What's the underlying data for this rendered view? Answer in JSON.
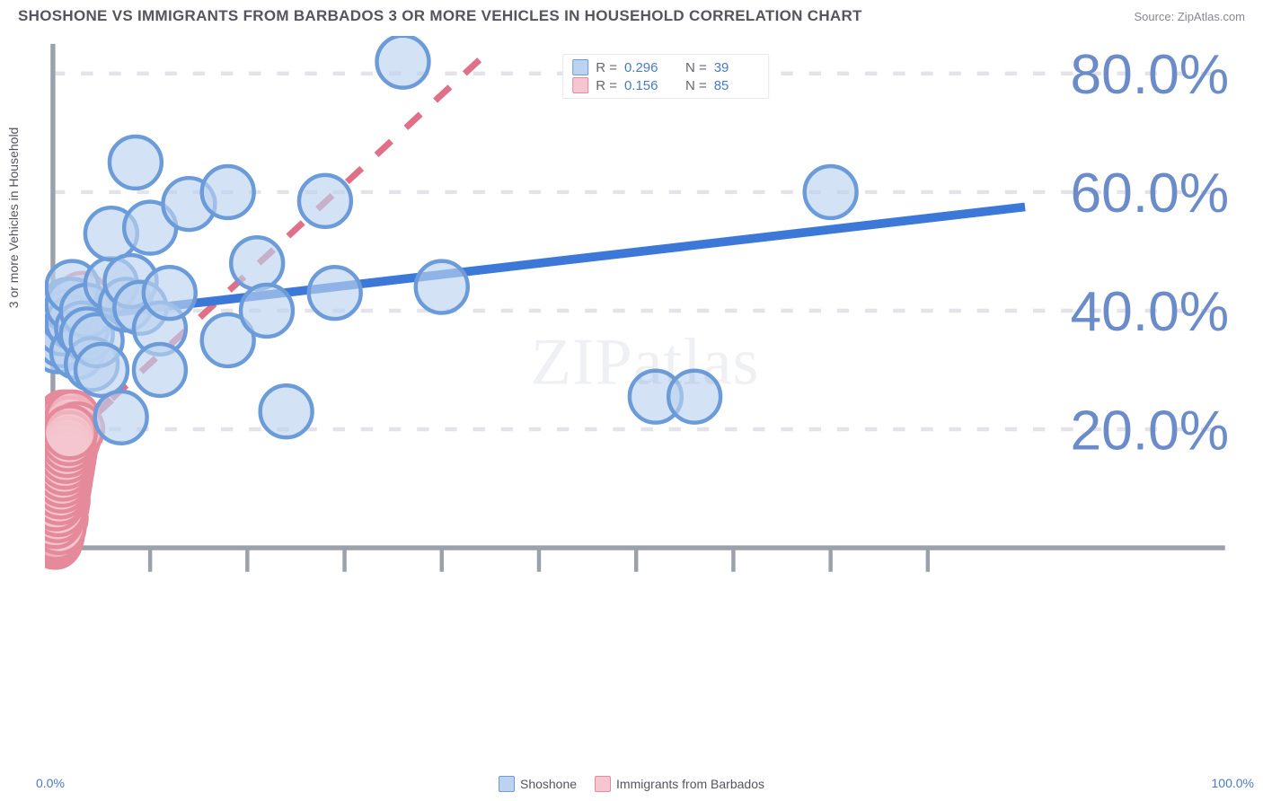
{
  "title": "SHOSHONE VS IMMIGRANTS FROM BARBADOS 3 OR MORE VEHICLES IN HOUSEHOLD CORRELATION CHART",
  "source": "Source: ZipAtlas.com",
  "watermark_a": "ZIP",
  "watermark_b": "atlas",
  "y_axis_label": "3 or more Vehicles in Household",
  "x_origin": "0.0%",
  "x_max": "100.0%",
  "chart": {
    "type": "scatter",
    "xlim": [
      0,
      100
    ],
    "ylim": [
      0,
      85
    ],
    "y_ticks": [
      20,
      40,
      60,
      80
    ],
    "y_tick_labels": [
      "20.0%",
      "40.0%",
      "60.0%",
      "80.0%"
    ],
    "x_ticks": [
      10,
      20,
      30,
      40,
      50,
      60,
      70,
      80,
      90
    ],
    "background_color": "#ffffff",
    "grid_color": "#e3e3e9",
    "axis_color": "#9aa1aa",
    "tick_label_color": "#6b8cc9",
    "series": [
      {
        "name": "Shoshone",
        "marker_fill": "#bcd2ef",
        "marker_stroke": "#6b9bd8",
        "marker_r": 6.5,
        "trend_color": "#3c78d8",
        "trend_width": 2.2,
        "trend_dash": "none",
        "trend": {
          "x1": 0,
          "y1": 38.5,
          "x2": 100,
          "y2": 57.5
        },
        "R_label": "R =",
        "R": "0.296",
        "N_label": "N =",
        "N": "39",
        "points": [
          [
            0.5,
            34
          ],
          [
            1,
            35
          ],
          [
            1,
            37
          ],
          [
            1.5,
            39
          ],
          [
            1.5,
            41
          ],
          [
            2,
            38
          ],
          [
            2,
            41
          ],
          [
            2,
            44
          ],
          [
            2.5,
            33
          ],
          [
            3,
            37
          ],
          [
            3.5,
            40
          ],
          [
            3.5,
            36
          ],
          [
            4,
            31
          ],
          [
            4.5,
            35
          ],
          [
            5,
            30
          ],
          [
            6,
            44.5
          ],
          [
            6,
            53
          ],
          [
            7,
            22
          ],
          [
            7.5,
            41
          ],
          [
            8,
            45
          ],
          [
            8.5,
            65
          ],
          [
            9,
            40.5
          ],
          [
            10,
            54
          ],
          [
            11,
            37
          ],
          [
            11,
            30
          ],
          [
            12,
            43
          ],
          [
            14,
            58
          ],
          [
            18,
            35
          ],
          [
            18,
            60
          ],
          [
            21,
            48
          ],
          [
            22,
            40
          ],
          [
            24,
            23
          ],
          [
            28,
            58.5
          ],
          [
            29,
            43
          ],
          [
            36,
            82
          ],
          [
            40,
            44
          ],
          [
            62,
            25.5
          ],
          [
            66,
            25.5
          ],
          [
            80,
            60
          ]
        ]
      },
      {
        "name": "Immigrants from Barbados",
        "marker_fill": "#f5c6cf",
        "marker_stroke": "#e48a9a",
        "marker_r": 6.5,
        "trend_color": "#e07088",
        "trend_width": 1.6,
        "trend_dash": "5,5",
        "trend": {
          "x1": 0,
          "y1": 16,
          "x2": 45,
          "y2": 84
        },
        "solid_segment": {
          "x1": 0,
          "y1": 16,
          "x2": 6,
          "y2": 25
        },
        "R_label": "R =",
        "R": "0.156",
        "N_label": "N =",
        "N": "85",
        "points": [
          [
            0.1,
            2
          ],
          [
            0.1,
            3
          ],
          [
            0.1,
            4
          ],
          [
            0.1,
            5
          ],
          [
            0.2,
            2
          ],
          [
            0.2,
            4
          ],
          [
            0.2,
            6
          ],
          [
            0.2,
            7
          ],
          [
            0.3,
            3
          ],
          [
            0.3,
            5
          ],
          [
            0.3,
            8
          ],
          [
            0.3,
            10
          ],
          [
            0.4,
            4
          ],
          [
            0.4,
            6
          ],
          [
            0.4,
            9
          ],
          [
            0.4,
            11
          ],
          [
            0.5,
            5
          ],
          [
            0.5,
            7
          ],
          [
            0.5,
            10
          ],
          [
            0.5,
            13
          ],
          [
            0.6,
            4
          ],
          [
            0.6,
            8
          ],
          [
            0.6,
            12
          ],
          [
            0.6,
            15
          ],
          [
            0.7,
            6
          ],
          [
            0.7,
            9
          ],
          [
            0.7,
            14
          ],
          [
            0.7,
            17
          ],
          [
            0.8,
            5
          ],
          [
            0.8,
            11
          ],
          [
            0.8,
            16
          ],
          [
            0.8,
            19
          ],
          [
            0.9,
            7
          ],
          [
            0.9,
            13
          ],
          [
            0.9,
            18
          ],
          [
            0.9,
            20
          ],
          [
            1.0,
            8
          ],
          [
            1.0,
            12
          ],
          [
            1.0,
            21
          ],
          [
            1.1,
            10
          ],
          [
            1.1,
            15
          ],
          [
            1.1,
            22
          ],
          [
            1.2,
            11
          ],
          [
            1.2,
            17
          ],
          [
            1.2,
            20
          ],
          [
            1.3,
            12
          ],
          [
            1.3,
            19
          ],
          [
            1.4,
            13
          ],
          [
            1.4,
            21
          ],
          [
            1.5,
            14
          ],
          [
            1.5,
            22
          ],
          [
            1.6,
            15
          ],
          [
            1.6,
            20
          ],
          [
            1.7,
            16
          ],
          [
            1.8,
            17
          ],
          [
            1.8,
            21
          ],
          [
            2.0,
            18
          ],
          [
            2.0,
            22
          ],
          [
            2.2,
            19
          ],
          [
            2.5,
            20
          ],
          [
            2.5,
            38
          ],
          [
            3,
            42
          ],
          [
            0.2,
            1
          ],
          [
            0.3,
            1.5
          ],
          [
            0.15,
            2.5
          ],
          [
            0.4,
            2
          ],
          [
            0.5,
            3
          ],
          [
            0.3,
            2.5
          ],
          [
            0.6,
            3.5
          ],
          [
            0.25,
            4.5
          ],
          [
            0.45,
            5.5
          ],
          [
            0.55,
            6.5
          ],
          [
            0.35,
            7.5
          ],
          [
            0.65,
            8.5
          ],
          [
            0.75,
            9.5
          ],
          [
            0.85,
            10.5
          ],
          [
            0.95,
            11.5
          ],
          [
            1.05,
            12.5
          ],
          [
            1.15,
            13.5
          ],
          [
            1.25,
            14.5
          ],
          [
            1.35,
            15.5
          ],
          [
            1.45,
            16.5
          ],
          [
            1.55,
            17.5
          ],
          [
            1.65,
            18.5
          ],
          [
            1.75,
            19.5
          ]
        ]
      }
    ]
  },
  "bottom_legend": [
    {
      "label": "Shoshone",
      "fill": "#bcd2ef",
      "stroke": "#6b9bd8"
    },
    {
      "label": "Immigrants from Barbados",
      "fill": "#f5c6cf",
      "stroke": "#e48a9a"
    }
  ]
}
